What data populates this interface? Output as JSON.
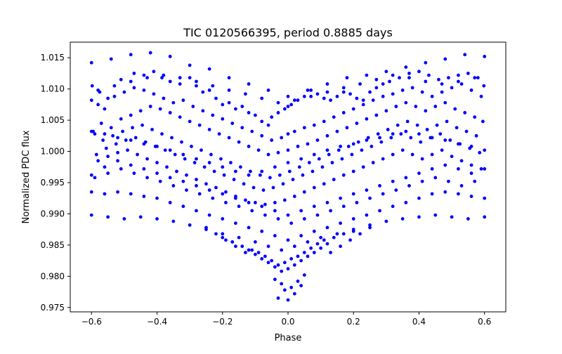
{
  "chart_data": {
    "type": "scatter",
    "title": "TIC 0120566395, period 0.8885 days",
    "xlabel": "Phase",
    "ylabel": "Normalized PDC flux",
    "xlim": [
      -0.665,
      0.665
    ],
    "ylim": [
      0.9743,
      1.0175
    ],
    "x_ticks": [
      -0.6,
      -0.4,
      -0.2,
      0.0,
      0.2,
      0.4,
      0.6
    ],
    "x_tick_labels": [
      "−0.6",
      "−0.4",
      "−0.2",
      "0.0",
      "0.2",
      "0.4",
      "0.6"
    ],
    "y_ticks": [
      0.975,
      0.98,
      0.985,
      0.99,
      0.995,
      1.0,
      1.005,
      1.01,
      1.015
    ],
    "y_tick_labels": [
      "0.975",
      "0.980",
      "0.985",
      "0.990",
      "0.995",
      "1.000",
      "1.005",
      "1.010",
      "1.015"
    ],
    "grid": false,
    "legend": "none",
    "marker_color": "#0000ff",
    "series": [
      {
        "x": [
          -0.598,
          -0.575,
          -0.55,
          -0.51,
          -0.47,
          -0.44,
          -0.41,
          -0.385,
          -0.36,
          -0.33,
          -0.3,
          -0.28,
          -0.26,
          -0.24,
          -0.22,
          -0.2,
          -0.18,
          -0.16,
          -0.14,
          -0.12,
          -0.1,
          -0.08,
          -0.06,
          -0.05,
          -0.03,
          -0.01,
          0.0,
          0.01,
          0.03,
          0.05,
          0.07,
          0.09,
          0.11,
          0.13,
          0.15,
          0.17,
          0.19,
          0.21,
          0.23,
          0.25,
          0.27,
          0.29,
          0.31,
          0.34,
          0.37,
          0.4,
          0.43,
          0.46,
          0.49,
          0.52,
          0.55,
          0.58,
          0.598,
          -0.6,
          -0.58,
          -0.56,
          -0.53,
          -0.5,
          -0.47,
          -0.44,
          -0.41,
          -0.38,
          -0.35,
          -0.32,
          -0.29,
          -0.26,
          -0.23,
          -0.2,
          -0.17,
          -0.14,
          -0.11,
          -0.08,
          -0.05,
          -0.02,
          0.0,
          0.02,
          0.05,
          0.08,
          0.11,
          0.14,
          0.17,
          0.2,
          0.23,
          0.26,
          0.29,
          0.32,
          0.35,
          0.38,
          0.41,
          0.44,
          0.47,
          0.5,
          0.53,
          0.56,
          0.59,
          -0.595,
          -0.57,
          -0.54,
          -0.51,
          -0.48,
          -0.45,
          -0.42,
          -0.39,
          -0.36,
          -0.33,
          -0.3,
          -0.27,
          -0.24,
          -0.21,
          -0.18,
          -0.15,
          -0.12,
          -0.09,
          -0.06,
          -0.03,
          0.0,
          0.03,
          0.06,
          0.09,
          0.12,
          0.15,
          0.18,
          0.21,
          0.24,
          0.27,
          0.3,
          0.33,
          0.36,
          0.39,
          0.42,
          0.45,
          0.48,
          0.51,
          0.54,
          0.57,
          0.595,
          -0.59,
          -0.565,
          -0.535,
          -0.505,
          -0.475,
          -0.445,
          -0.415,
          -0.385,
          -0.355,
          -0.325,
          -0.295,
          -0.265,
          -0.235,
          -0.205,
          -0.175,
          -0.145,
          -0.115,
          -0.085,
          -0.055,
          -0.025,
          0.005,
          0.035,
          0.065,
          0.095,
          0.125,
          0.155,
          0.185,
          0.215,
          0.245,
          0.275,
          0.305,
          0.335,
          0.365,
          0.395,
          0.425,
          0.455,
          0.485,
          0.515,
          0.545,
          0.575,
          -0.585,
          -0.555,
          -0.525,
          -0.495,
          -0.465,
          -0.435,
          -0.405,
          -0.375,
          -0.345,
          -0.315,
          -0.285,
          -0.255,
          -0.225,
          -0.195,
          -0.165,
          -0.135,
          -0.105,
          -0.075,
          -0.045,
          -0.015,
          0.015,
          0.045,
          0.075,
          0.105,
          0.135,
          0.165,
          0.195,
          0.225,
          0.255,
          0.285,
          0.315,
          0.345,
          0.375,
          0.405,
          0.435,
          0.465,
          0.495,
          0.525,
          0.555,
          0.585,
          -0.58,
          -0.55,
          -0.52,
          -0.49,
          -0.46,
          -0.43,
          -0.4,
          -0.37,
          -0.34,
          -0.31,
          -0.28,
          -0.25,
          -0.22,
          -0.19,
          -0.16,
          -0.13,
          -0.1,
          -0.07,
          -0.04,
          -0.01,
          0.02,
          0.05,
          0.08,
          0.11,
          0.14,
          0.17,
          0.2,
          0.23,
          0.26,
          0.29,
          0.32,
          0.35,
          0.38,
          0.41,
          0.44,
          0.47,
          0.5,
          0.53,
          0.56,
          0.59,
          -0.6,
          -0.56,
          -0.52,
          -0.48,
          -0.44,
          -0.4,
          -0.36,
          -0.32,
          -0.28,
          -0.24,
          -0.2,
          -0.16,
          -0.12,
          -0.08,
          -0.04,
          0.0,
          0.04,
          0.08,
          0.12,
          0.16,
          0.2,
          0.24,
          0.28,
          0.32,
          0.36,
          0.4,
          0.44,
          0.48,
          0.52,
          0.56,
          0.6,
          -0.59,
          -0.55,
          -0.51,
          -0.47,
          -0.43,
          -0.39,
          -0.35,
          -0.31,
          -0.27,
          -0.23,
          -0.19,
          -0.15,
          -0.11,
          -0.07,
          -0.03,
          0.01,
          0.05,
          0.09,
          0.13,
          0.17,
          0.21,
          0.25,
          0.29,
          0.33,
          0.37,
          0.41,
          0.45,
          0.49,
          0.53,
          0.57,
          -0.6,
          -0.56,
          -0.52,
          -0.48,
          -0.44,
          -0.4,
          -0.36,
          -0.32,
          -0.28,
          -0.24,
          -0.2,
          -0.16,
          -0.12,
          -0.08,
          -0.04,
          0.0,
          0.04,
          0.08,
          0.12,
          0.16,
          0.2,
          0.24,
          0.28,
          0.32,
          0.36,
          0.4,
          0.44,
          0.48,
          0.52,
          0.56,
          0.6,
          -0.6,
          -0.55,
          -0.5,
          -0.45,
          -0.4,
          -0.35,
          -0.3,
          -0.25,
          -0.2,
          -0.15,
          -0.1,
          -0.06,
          -0.02,
          0.02,
          0.06,
          0.1,
          0.15,
          0.2,
          0.25,
          0.3,
          0.35,
          0.4,
          0.45,
          0.5,
          0.55,
          0.6,
          -0.6,
          -0.56,
          -0.52,
          -0.48,
          -0.44,
          -0.4,
          -0.36,
          -0.32,
          -0.28,
          -0.24,
          -0.2,
          -0.16,
          -0.12,
          -0.08,
          -0.04,
          0.0,
          0.04,
          0.08,
          0.12,
          0.16,
          0.2,
          0.24,
          0.28,
          0.32,
          0.36,
          0.4,
          0.44,
          0.48,
          0.52,
          0.56,
          0.6,
          -0.58,
          -0.53,
          -0.48,
          -0.43,
          -0.38,
          -0.33,
          -0.28,
          -0.23,
          -0.18,
          -0.13,
          -0.08,
          -0.03,
          0.02,
          0.07,
          0.12,
          0.17,
          0.22,
          0.27,
          0.32,
          0.37,
          0.42,
          0.47,
          0.52,
          0.57,
          -0.6,
          -0.54,
          -0.48,
          -0.42,
          -0.36,
          -0.3,
          -0.24,
          -0.18,
          -0.12,
          -0.06,
          0.0,
          0.06,
          0.12,
          0.18,
          0.24,
          0.3,
          0.36,
          0.42,
          0.48,
          0.54,
          0.6,
          -0.2,
          -0.17,
          -0.14,
          -0.11,
          -0.09,
          -0.07,
          -0.05,
          -0.03,
          -0.01,
          0.01,
          0.03,
          0.05,
          0.07,
          0.09,
          0.11,
          0.14,
          0.17,
          0.2,
          -0.12,
          -0.1,
          -0.08,
          -0.06,
          -0.04,
          -0.02,
          0.0,
          0.02,
          0.04,
          0.06,
          0.08,
          0.1,
          0.12,
          -0.04,
          -0.02,
          -0.01,
          0.01,
          0.03,
          0.05,
          -0.03,
          0.0,
          0.02,
          0.04,
          -0.25,
          -0.22,
          -0.19,
          -0.16,
          -0.13,
          0.13,
          0.16,
          0.19,
          0.22,
          0.25
        ],
        "y": [
          1.0105,
          1.0095,
          1.0085,
          1.0115,
          1.0125,
          1.0122,
          1.0128,
          1.0118,
          1.0112,
          1.0108,
          1.0118,
          1.0105,
          1.0095,
          1.0098,
          1.0085,
          1.0075,
          1.0078,
          1.0068,
          1.0072,
          1.0062,
          1.0058,
          1.0048,
          1.0042,
          1.0055,
          1.0062,
          1.0068,
          1.0072,
          1.0075,
          1.0082,
          1.0088,
          1.0098,
          1.0092,
          1.0085,
          1.0082,
          1.0088,
          1.0095,
          1.0092,
          1.0085,
          1.0082,
          1.0095,
          1.0102,
          1.0108,
          1.0112,
          1.0118,
          1.0125,
          1.0128,
          1.0122,
          1.0115,
          1.0118,
          1.0122,
          1.0125,
          1.0118,
          1.0105,
          1.0082,
          1.0075,
          1.0068,
          1.0088,
          1.0095,
          1.0102,
          1.0098,
          1.0092,
          1.0085,
          1.0078,
          1.0082,
          1.0072,
          1.0065,
          1.0058,
          1.0052,
          1.0045,
          1.0038,
          1.0032,
          1.0025,
          1.0018,
          1.0022,
          1.0028,
          1.0032,
          1.0038,
          1.0042,
          1.0048,
          1.0055,
          1.0062,
          1.0068,
          1.0075,
          1.0082,
          1.0088,
          1.0092,
          1.0098,
          1.0102,
          1.0095,
          1.0088,
          1.0095,
          1.0102,
          1.0108,
          1.0098,
          1.0088,
          1.0032,
          1.0045,
          1.0038,
          1.0052,
          1.0058,
          1.0065,
          1.0072,
          1.0068,
          1.0062,
          1.0055,
          1.0048,
          1.0042,
          1.0035,
          1.0028,
          1.0022,
          1.0015,
          1.0008,
          1.0002,
          0.9995,
          0.9998,
          1.0002,
          1.0008,
          1.0012,
          1.0018,
          1.0025,
          1.0032,
          1.0038,
          1.0045,
          1.0052,
          1.0058,
          1.0065,
          1.0072,
          1.0078,
          1.0072,
          1.0065,
          1.0072,
          1.0078,
          1.0068,
          1.0062,
          1.0055,
          1.0048,
          1.0028,
          1.0018,
          1.0025,
          1.0032,
          1.0038,
          1.0042,
          1.0035,
          1.0028,
          1.0022,
          1.0015,
          1.0008,
          1.0002,
          0.9995,
          0.9988,
          0.9982,
          0.9975,
          0.9968,
          0.9962,
          0.9958,
          0.9962,
          0.9968,
          0.9975,
          0.9982,
          0.9988,
          0.9995,
          1.0002,
          1.0008,
          1.0015,
          1.0022,
          1.0028,
          1.0035,
          1.0042,
          1.0048,
          1.0042,
          1.0035,
          1.0042,
          1.0048,
          1.0038,
          1.0032,
          1.0025,
          0.9995,
          1.0005,
          1.0012,
          1.0018,
          1.0022,
          1.0015,
          1.0008,
          1.0002,
          0.9995,
          0.9988,
          0.9982,
          0.9975,
          0.9968,
          0.9962,
          0.9955,
          0.9948,
          0.9942,
          0.9938,
          0.9942,
          0.9948,
          0.9955,
          0.9962,
          0.9968,
          0.9975,
          0.9982,
          0.9988,
          0.9995,
          1.0002,
          1.0008,
          1.0015,
          1.0022,
          1.0028,
          1.0022,
          1.0015,
          1.0022,
          1.0028,
          1.0018,
          1.0012,
          1.0005,
          0.9998,
          0.9985,
          0.9992,
          0.9998,
          1.0002,
          0.9995,
          0.9988,
          0.9982,
          0.9975,
          0.9968,
          0.9962,
          0.9955,
          0.9948,
          0.9942,
          0.9935,
          0.9928,
          0.9922,
          0.9918,
          0.9915,
          0.9918,
          0.9922,
          0.9928,
          0.9935,
          0.9942,
          0.9948,
          0.9955,
          0.9962,
          0.9968,
          0.9975,
          0.9982,
          0.9988,
          0.9995,
          1.0002,
          0.9995,
          0.9988,
          0.9995,
          1.0002,
          0.9992,
          0.9985,
          0.9978,
          0.9972,
          0.9962,
          0.9975,
          0.9985,
          0.9978,
          0.9972,
          0.9965,
          0.9958,
          0.9952,
          0.9945,
          0.9938,
          0.9932,
          0.9925,
          0.9918,
          0.9912,
          0.9905,
          0.9898,
          0.9905,
          0.9912,
          0.9918,
          0.9925,
          0.9932,
          0.9938,
          0.9945,
          0.9952,
          0.9958,
          0.9965,
          0.9972,
          0.9978,
          0.9972,
          0.9965,
          0.9972,
          0.9958,
          0.9965,
          0.9972,
          0.9965,
          0.9958,
          0.9952,
          0.9945,
          0.9938,
          0.9932,
          0.9925,
          0.9918,
          0.9912,
          0.9905,
          0.9898,
          0.9892,
          0.9885,
          0.9892,
          0.9898,
          0.9905,
          0.9912,
          0.9918,
          0.9925,
          0.9932,
          0.9938,
          0.9945,
          0.9952,
          0.9958,
          0.9952,
          0.9945,
          0.9952,
          0.9935,
          0.9932,
          0.9935,
          0.9932,
          0.9928,
          0.9925,
          0.9918,
          0.9912,
          0.9905,
          0.9898,
          0.9892,
          0.9885,
          0.9878,
          0.9872,
          0.9865,
          0.9858,
          0.9865,
          0.9872,
          0.9878,
          0.9885,
          0.9892,
          0.9898,
          0.9905,
          0.9912,
          0.9918,
          0.9925,
          0.9932,
          0.9935,
          0.9932,
          0.9928,
          0.9925,
          0.9898,
          0.9895,
          0.9892,
          0.9895,
          0.9892,
          0.9888,
          0.9882,
          0.9875,
          0.9868,
          0.9862,
          0.9855,
          0.9848,
          0.9842,
          0.9848,
          0.9855,
          0.9862,
          0.9868,
          0.9875,
          0.9882,
          0.9888,
          0.9892,
          0.9895,
          0.9898,
          0.9895,
          0.9892,
          0.9895,
          1.0032,
          1.0028,
          1.0022,
          1.0018,
          1.0012,
          1.0008,
          1.0002,
          0.9995,
          0.9988,
          0.9982,
          0.9975,
          0.9968,
          0.9962,
          0.9968,
          0.9975,
          0.9982,
          0.9988,
          0.9995,
          1.0002,
          1.0008,
          1.0012,
          1.0018,
          1.0022,
          1.0028,
          1.0032,
          1.0028,
          1.0022,
          1.0018,
          1.0012,
          1.0008,
          1.0002,
          1.0098,
          1.0105,
          1.0112,
          1.0118,
          1.0122,
          1.0118,
          1.0112,
          1.0105,
          1.0098,
          1.0092,
          1.0085,
          1.0078,
          1.0082,
          1.0088,
          1.0095,
          1.0102,
          1.0108,
          1.0115,
          1.0122,
          1.0118,
          1.0112,
          1.0108,
          1.0112,
          1.0118,
          1.0142,
          1.0148,
          1.0155,
          1.0158,
          1.0152,
          1.0138,
          1.0132,
          1.0118,
          1.0108,
          1.0098,
          1.0088,
          1.0098,
          1.0108,
          1.0118,
          1.0122,
          1.0128,
          1.0135,
          1.0142,
          1.0148,
          1.0155,
          1.0152,
          0.9862,
          0.9855,
          0.9848,
          0.9842,
          0.9838,
          0.9832,
          0.9825,
          0.9818,
          0.9822,
          0.9828,
          0.9832,
          0.9838,
          0.9845,
          0.9852,
          0.9858,
          0.9862,
          0.9868,
          0.9872,
          0.9842,
          0.9835,
          0.9828,
          0.9822,
          0.9815,
          0.9808,
          0.9812,
          0.9818,
          0.9825,
          0.9832,
          0.9838,
          0.9845,
          0.9852,
          0.9795,
          0.9788,
          0.9778,
          0.9782,
          0.9792,
          0.9802,
          0.9765,
          0.9762,
          0.9772,
          0.9785,
          0.9878,
          0.9868,
          0.9858,
          0.9848,
          0.9838,
          0.9838,
          0.9848,
          0.9858,
          0.9868,
          0.9878
        ]
      }
    ]
  }
}
